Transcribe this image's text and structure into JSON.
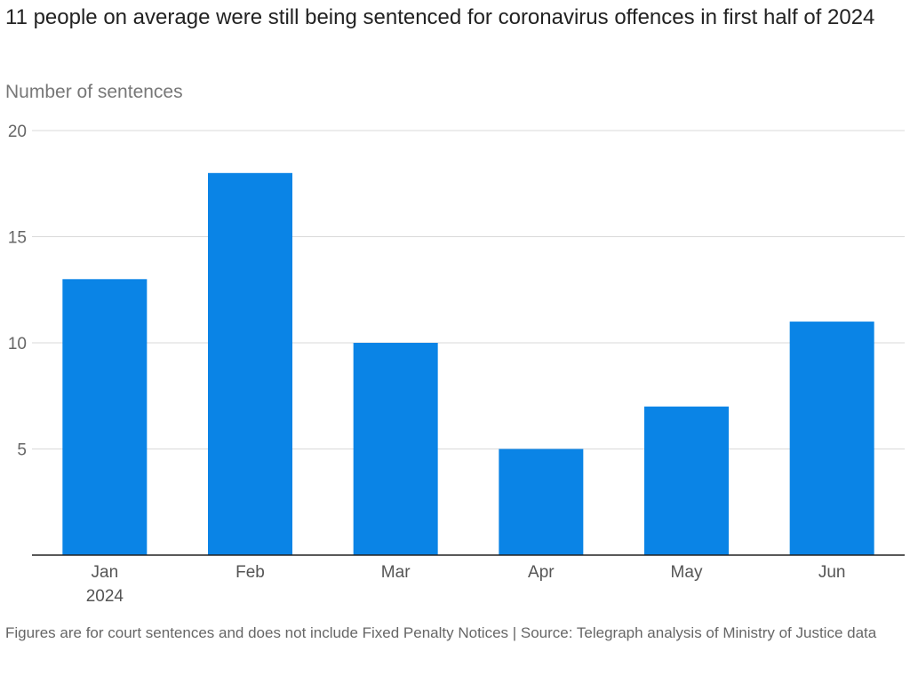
{
  "chart_data": {
    "type": "bar",
    "title": "11 people on average were still being sentenced for coronavirus offences in first half of 2024",
    "ylabel": "Number of sentences",
    "xlabel": "",
    "categories": [
      "Jan",
      "Feb",
      "Mar",
      "Apr",
      "May",
      "Jun"
    ],
    "category_sublabels": [
      "2024",
      "",
      "",
      "",
      "",
      ""
    ],
    "values": [
      13,
      18,
      10,
      5,
      7,
      11
    ],
    "ylim": [
      0,
      20
    ],
    "yticks": [
      5,
      10,
      15,
      20
    ],
    "grid": true,
    "bar_color": "#0a84e6",
    "footer": "Figures are for court sentences and does not include Fixed Penalty Notices | Source: Telegraph analysis of Ministry of Justice data"
  }
}
